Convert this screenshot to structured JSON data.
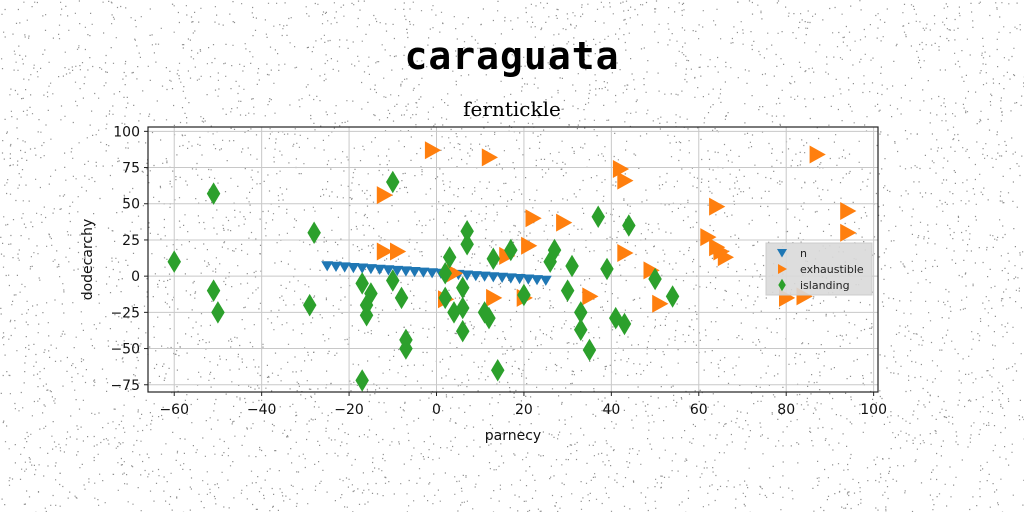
{
  "chart_data": {
    "type": "scatter",
    "title": "caraguata",
    "subtitle": "ferntickle",
    "xlabel": "parnecy",
    "ylabel": "dodecarchy",
    "xlim": [
      -66,
      101
    ],
    "ylim": [
      -80,
      103
    ],
    "xticks": [
      -60,
      -40,
      -20,
      0,
      20,
      40,
      60,
      80,
      100
    ],
    "yticks": [
      100,
      75,
      50,
      25,
      0,
      -25,
      -50,
      -75
    ],
    "grid": true,
    "legend_position": "right",
    "series": [
      {
        "name": "n",
        "marker": "triangle-down",
        "color": "#1f77b4",
        "points": [
          [
            -25,
            7
          ],
          [
            -23,
            6.6
          ],
          [
            -21,
            6.2
          ],
          [
            -19,
            5.8
          ],
          [
            -17,
            5.4
          ],
          [
            -15,
            5
          ],
          [
            -13,
            4.6
          ],
          [
            -11,
            4.2
          ],
          [
            -9,
            3.8
          ],
          [
            -7,
            3.4
          ],
          [
            -5,
            3
          ],
          [
            -3,
            2.6
          ],
          [
            -1,
            2.2
          ],
          [
            1,
            1.8
          ],
          [
            3,
            1.4
          ],
          [
            5,
            1
          ],
          [
            7,
            0.6
          ],
          [
            9,
            0.2
          ],
          [
            11,
            -0.2
          ],
          [
            13,
            -0.6
          ],
          [
            15,
            -1
          ],
          [
            17,
            -1.4
          ],
          [
            19,
            -1.8
          ],
          [
            21,
            -2.2
          ],
          [
            23,
            -2.6
          ],
          [
            25,
            -3
          ]
        ]
      },
      {
        "name": "exhaustible",
        "marker": "triangle-right",
        "color": "#ff7f0e",
        "points": [
          [
            -1,
            87
          ],
          [
            12,
            82
          ],
          [
            -12,
            56
          ],
          [
            -12,
            17
          ],
          [
            -9,
            17
          ],
          [
            4,
            2
          ],
          [
            2,
            -16
          ],
          [
            13,
            -15
          ],
          [
            16,
            14
          ],
          [
            20,
            -15
          ],
          [
            21,
            21
          ],
          [
            22,
            40
          ],
          [
            29,
            37
          ],
          [
            35,
            -14
          ],
          [
            42,
            74
          ],
          [
            43,
            66
          ],
          [
            43,
            16
          ],
          [
            49,
            4
          ],
          [
            51,
            -19
          ],
          [
            62,
            27
          ],
          [
            64,
            20
          ],
          [
            65,
            17
          ],
          [
            66,
            13
          ],
          [
            64,
            48
          ],
          [
            80,
            -15
          ],
          [
            84,
            -14
          ],
          [
            87,
            84
          ],
          [
            94,
            45
          ],
          [
            94,
            30
          ]
        ]
      },
      {
        "name": "islanding",
        "marker": "diamond",
        "color": "#2ca02c",
        "points": [
          [
            -60,
            10
          ],
          [
            -51,
            57
          ],
          [
            -51,
            -10
          ],
          [
            -50,
            -25
          ],
          [
            -29,
            -20
          ],
          [
            -28,
            30
          ],
          [
            -17,
            -72
          ],
          [
            -16,
            -27
          ],
          [
            -16,
            -20
          ],
          [
            -17,
            -5
          ],
          [
            -15,
            -12
          ],
          [
            -10,
            65
          ],
          [
            -10,
            -3
          ],
          [
            -8,
            -15
          ],
          [
            -7,
            -44
          ],
          [
            -7,
            -50
          ],
          [
            2,
            -15
          ],
          [
            2,
            2
          ],
          [
            4,
            -25
          ],
          [
            6,
            -22
          ],
          [
            6,
            -38
          ],
          [
            6,
            -8
          ],
          [
            7,
            31
          ],
          [
            7,
            22
          ],
          [
            11,
            -25
          ],
          [
            12,
            -29
          ],
          [
            14,
            -65
          ],
          [
            17,
            18
          ],
          [
            20,
            -13
          ],
          [
            26,
            10
          ],
          [
            27,
            18
          ],
          [
            30,
            -10
          ],
          [
            31,
            7
          ],
          [
            33,
            -25
          ],
          [
            33,
            -37
          ],
          [
            35,
            -51
          ],
          [
            37,
            41
          ],
          [
            39,
            5
          ],
          [
            41,
            -29
          ],
          [
            43,
            -33
          ],
          [
            44,
            35
          ],
          [
            50,
            -2
          ],
          [
            54,
            -14
          ],
          [
            13,
            12
          ],
          [
            3,
            13
          ]
        ]
      }
    ]
  }
}
